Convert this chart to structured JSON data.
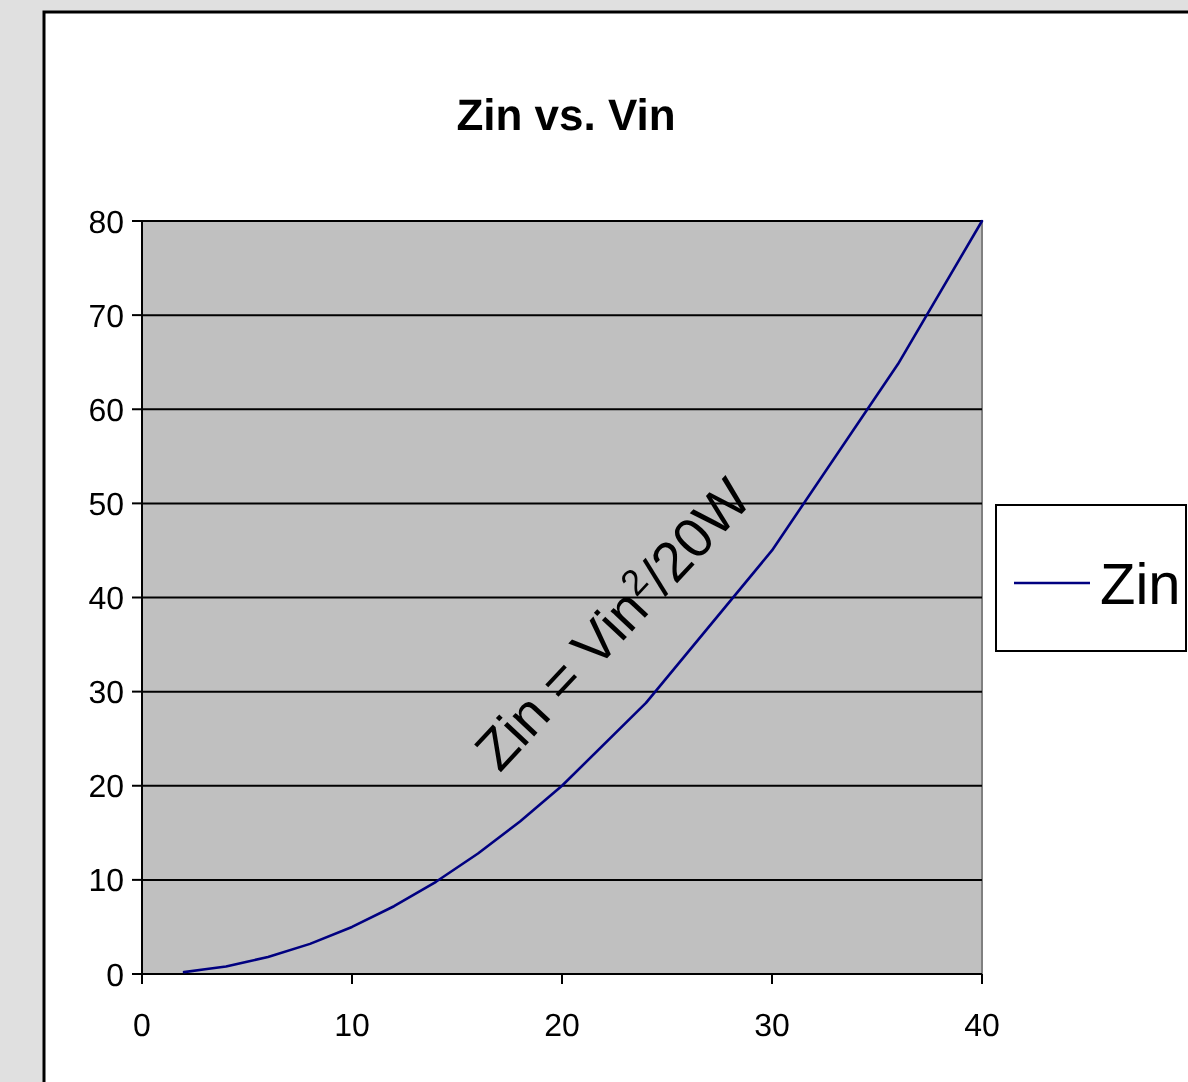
{
  "chart_data": {
    "type": "line",
    "title": "Zin vs. Vin",
    "x": [
      2,
      3,
      4,
      5,
      6,
      8,
      10,
      12,
      14,
      16,
      18,
      20,
      24,
      30,
      36,
      40
    ],
    "series": [
      {
        "name": "Zin",
        "color": "#000080",
        "values": [
          0.2,
          0.5,
          0.8,
          1.3,
          1.8,
          3.2,
          5,
          7.2,
          9.8,
          12.8,
          16.2,
          20,
          28.8,
          45,
          64.8,
          80
        ]
      }
    ],
    "xlim": [
      0,
      40
    ],
    "xticks": [
      0,
      10,
      20,
      30,
      40
    ],
    "ylim": [
      0,
      80
    ],
    "yticks": [
      0,
      10,
      20,
      30,
      40,
      50,
      60,
      70,
      80
    ],
    "grid": "y",
    "legend": "right",
    "line_style": "solid",
    "annotations": [
      "Zin = Vin$^{2}$/20W"
    ]
  }
}
